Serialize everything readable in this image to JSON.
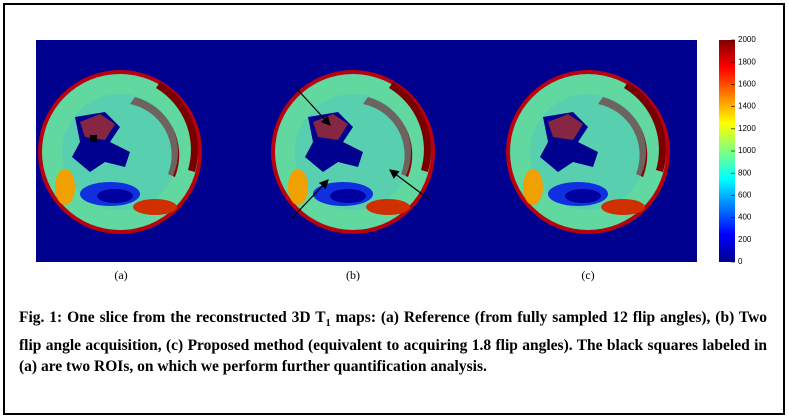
{
  "figure": {
    "panels": [
      "(a)",
      "(b)",
      "(c)"
    ],
    "colorbar": {
      "lim": [
        0,
        2000
      ],
      "ticks": [
        0,
        200,
        400,
        600,
        800,
        1000,
        1200,
        1400,
        1600,
        1800,
        2000
      ]
    },
    "caption": {
      "part1": "Fig. 1: One slice from the reconstructed 3D T",
      "subscript": "1",
      "part2": " maps: (a) Reference (from fully sampled 12 flip angles), (b) Two flip angle acquisition, (c) Proposed method (equivalent to acquiring 1.8 flip angles). The black squares labeled in (a) are two ROIs, on which we perform further quantification analysis."
    }
  }
}
